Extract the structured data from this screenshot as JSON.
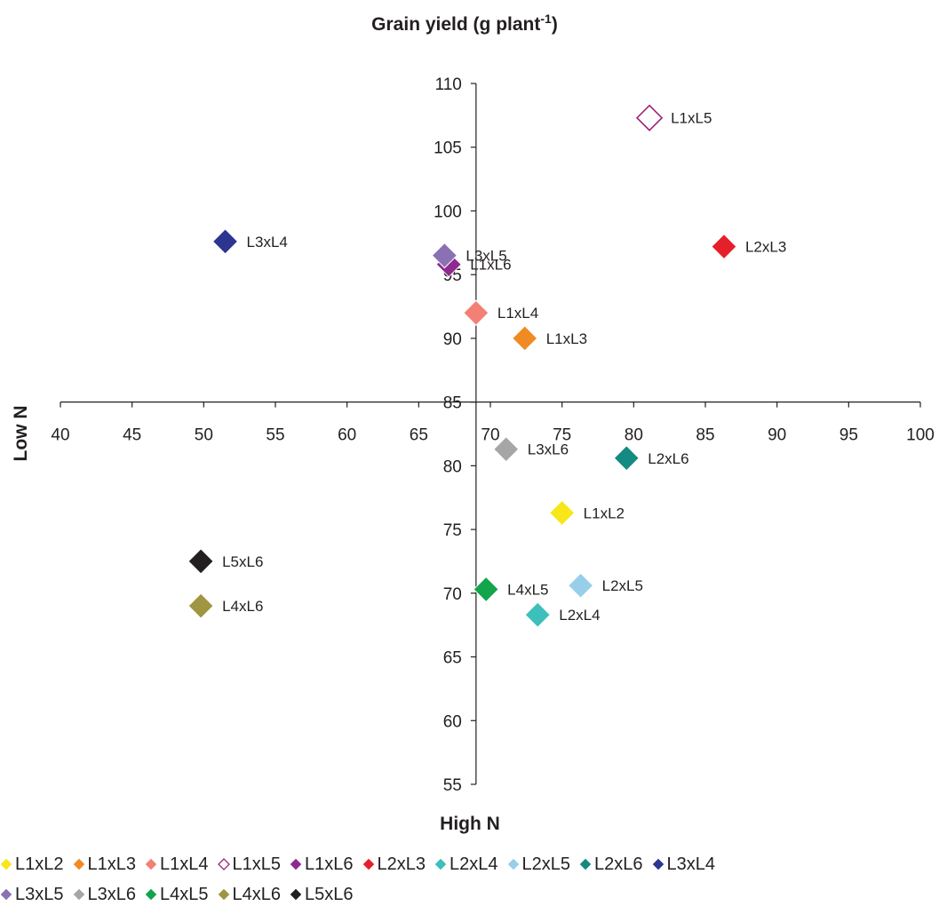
{
  "chart_data": {
    "type": "scatter",
    "title": "Grain yield (g plant",
    "title_sup": "-1",
    "title_end": ")",
    "xlabel": "High N",
    "ylabel": "Low N",
    "xlim": [
      40,
      100
    ],
    "ylim": [
      55,
      110
    ],
    "x_axis_crosses_y_at": 85,
    "y_axis_crosses_x_at": 69,
    "xticks": [
      "40",
      "45",
      "50",
      "55",
      "60",
      "65",
      "70",
      "75",
      "80",
      "85",
      "90",
      "95",
      "100"
    ],
    "yticks": [
      "55",
      "60",
      "65",
      "70",
      "75",
      "80",
      "85",
      "90",
      "95",
      "100",
      "105",
      "110"
    ],
    "grid": false,
    "legend_position": "bottom",
    "series": [
      {
        "name": "L1xL2",
        "x": 75.0,
        "y": 76.3,
        "color": "#f7e619",
        "filled": true
      },
      {
        "name": "L1xL3",
        "x": 72.4,
        "y": 90.0,
        "color": "#f08b24",
        "filled": true
      },
      {
        "name": "L1xL4",
        "x": 69.0,
        "y": 92.0,
        "color": "#f38074",
        "filled": true
      },
      {
        "name": "L1xL5",
        "x": 81.1,
        "y": 107.3,
        "color": "#9d237b",
        "filled": false
      },
      {
        "name": "L1xL6",
        "x": 67.1,
        "y": 95.8,
        "color": "#8f2a8e",
        "filled": true
      },
      {
        "name": "L2xL3",
        "x": 86.3,
        "y": 97.2,
        "color": "#e6202a",
        "filled": true
      },
      {
        "name": "L2xL4",
        "x": 73.3,
        "y": 68.3,
        "color": "#3dbfbb",
        "filled": true
      },
      {
        "name": "L2xL5",
        "x": 76.3,
        "y": 70.6,
        "color": "#97cfea",
        "filled": true
      },
      {
        "name": "L2xL6",
        "x": 79.5,
        "y": 80.6,
        "color": "#138a82",
        "filled": true
      },
      {
        "name": "L3xL4",
        "x": 51.5,
        "y": 97.6,
        "color": "#2c3590",
        "filled": true
      },
      {
        "name": "L3xL5",
        "x": 66.8,
        "y": 96.5,
        "color": "#8a71b4",
        "filled": true
      },
      {
        "name": "L3xL6",
        "x": 71.1,
        "y": 81.3,
        "color": "#a6a6a6",
        "filled": true
      },
      {
        "name": "L4xL5",
        "x": 69.7,
        "y": 70.3,
        "color": "#12a54b",
        "filled": true
      },
      {
        "name": "L4xL6",
        "x": 49.8,
        "y": 69.0,
        "color": "#a09540",
        "filled": true
      },
      {
        "name": "L5xL6",
        "x": 49.8,
        "y": 72.5,
        "color": "#231f20",
        "filled": true
      }
    ]
  }
}
